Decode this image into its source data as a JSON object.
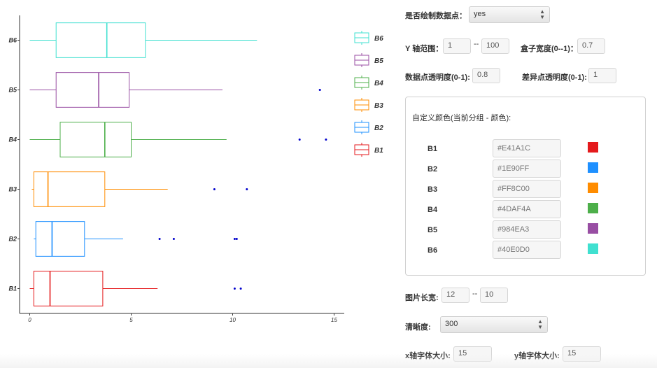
{
  "chart_data": {
    "type": "boxplot",
    "orientation": "horizontal",
    "categories": [
      "B1",
      "B2",
      "B3",
      "B4",
      "B5",
      "B6"
    ],
    "xlim": [
      -0.5,
      15.5
    ],
    "x_ticks": [
      "0",
      "5",
      "10",
      "15"
    ],
    "series": [
      {
        "name": "B1",
        "color": "#E41A1C",
        "whisker_low": 0.0,
        "q1": 0.2,
        "median": 1.0,
        "q3": 3.6,
        "whisker_high": 6.3,
        "outliers": [
          10.1,
          10.4
        ]
      },
      {
        "name": "B2",
        "color": "#1E90FF",
        "whisker_low": 0.2,
        "q1": 0.3,
        "median": 1.1,
        "q3": 2.7,
        "whisker_high": 4.6,
        "outliers": [
          6.4,
          7.1,
          10.1,
          10.2
        ]
      },
      {
        "name": "B3",
        "color": "#FF8C00",
        "whisker_low": 0.1,
        "q1": 0.2,
        "median": 0.9,
        "q3": 3.7,
        "whisker_high": 6.8,
        "outliers": [
          9.1,
          10.7
        ]
      },
      {
        "name": "B4",
        "color": "#4DAF4A",
        "whisker_low": 0.0,
        "q1": 1.5,
        "median": 3.7,
        "q3": 5.0,
        "whisker_high": 9.7,
        "outliers": [
          13.3,
          14.6
        ]
      },
      {
        "name": "B5",
        "color": "#984EA3",
        "whisker_low": 0.0,
        "q1": 1.3,
        "median": 3.4,
        "q3": 4.9,
        "whisker_high": 9.5,
        "outliers": [
          14.3
        ]
      },
      {
        "name": "B6",
        "color": "#40E0D0",
        "whisker_low": 0.0,
        "q1": 1.3,
        "median": 3.8,
        "q3": 5.7,
        "whisker_high": 11.2,
        "outliers": []
      }
    ],
    "outlier_color": "#0000CC",
    "legend": [
      "B6",
      "B5",
      "B4",
      "B3",
      "B2",
      "B1"
    ],
    "legend_position": "right",
    "grid": false
  },
  "controls": {
    "draw_points_label": "是否绘制数据点：",
    "draw_points_value": "yes",
    "y_range_label": "Y 轴范围：",
    "y_min": "1",
    "y_max": "100",
    "range_sep": "--",
    "box_width_label": "盒子宽度(0--1)：",
    "box_width": "0.7",
    "point_alpha_label": "数据点透明度(0-1):",
    "point_alpha": "0.8",
    "outlier_alpha_label": "差异点透明度(0-1):",
    "outlier_alpha": "1",
    "custom_colors_title": "自定义颜色(当前分组 - 颜色):",
    "custom_colors": [
      {
        "name": "B1",
        "hex": "#E41A1C"
      },
      {
        "name": "B2",
        "hex": "#1E90FF"
      },
      {
        "name": "B3",
        "hex": "#FF8C00"
      },
      {
        "name": "B4",
        "hex": "#4DAF4A"
      },
      {
        "name": "B5",
        "hex": "#984EA3"
      },
      {
        "name": "B6",
        "hex": "#40E0D0"
      }
    ],
    "image_size_label": "图片长宽:",
    "img_w": "12",
    "img_h": "10",
    "size_sep": "--",
    "dpi_label": "清晰度:",
    "dpi_value": "300",
    "x_font_label": "x轴字体大小:",
    "x_font": "15",
    "y_font_label": "y轴字体大小:",
    "y_font": "15"
  }
}
